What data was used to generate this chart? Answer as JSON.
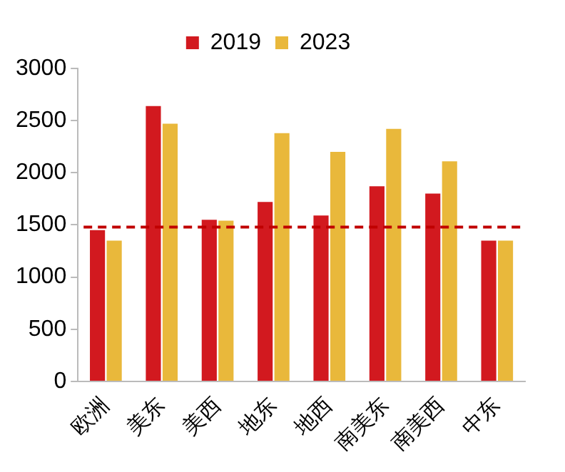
{
  "chart_data": {
    "type": "bar",
    "categories": [
      "欧洲",
      "美东",
      "美西",
      "地东",
      "地西",
      "南美东",
      "南美西",
      "中东"
    ],
    "series": [
      {
        "name": "2019",
        "color": "#d2191f",
        "values": [
          1450,
          2640,
          1550,
          1720,
          1590,
          1870,
          1800,
          1350
        ]
      },
      {
        "name": "2023",
        "color": "#e9b83b",
        "values": [
          1350,
          2470,
          1540,
          2380,
          2200,
          2420,
          2110,
          1350
        ]
      }
    ],
    "ylim": [
      0,
      3000
    ],
    "yticks": [
      0,
      500,
      1000,
      1500,
      2000,
      2500,
      3000
    ],
    "grid": false,
    "legend": "top",
    "ref_lines": [
      {
        "axis": "y",
        "value": 1480,
        "color": "#c00000",
        "line_style": "dashed"
      }
    ]
  }
}
